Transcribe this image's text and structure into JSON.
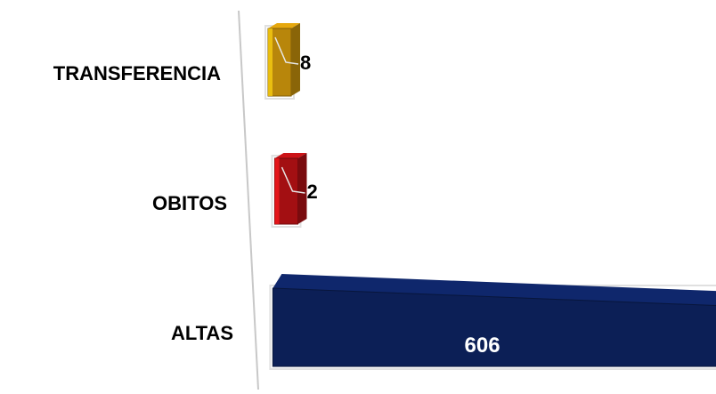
{
  "chart_data": {
    "type": "bar",
    "orientation": "horizontal",
    "style": "3d",
    "categories": [
      "TRANSFERENCIA",
      "OBITOS",
      "ALTAS"
    ],
    "values": [
      8,
      2,
      606
    ],
    "data_labels": [
      "8",
      "2",
      "606"
    ],
    "colors": [
      "#b8860b",
      "#a30f12",
      "#0c1f56"
    ],
    "title": "",
    "xlabel": "",
    "ylabel": "",
    "grid": false,
    "legend": "none"
  }
}
